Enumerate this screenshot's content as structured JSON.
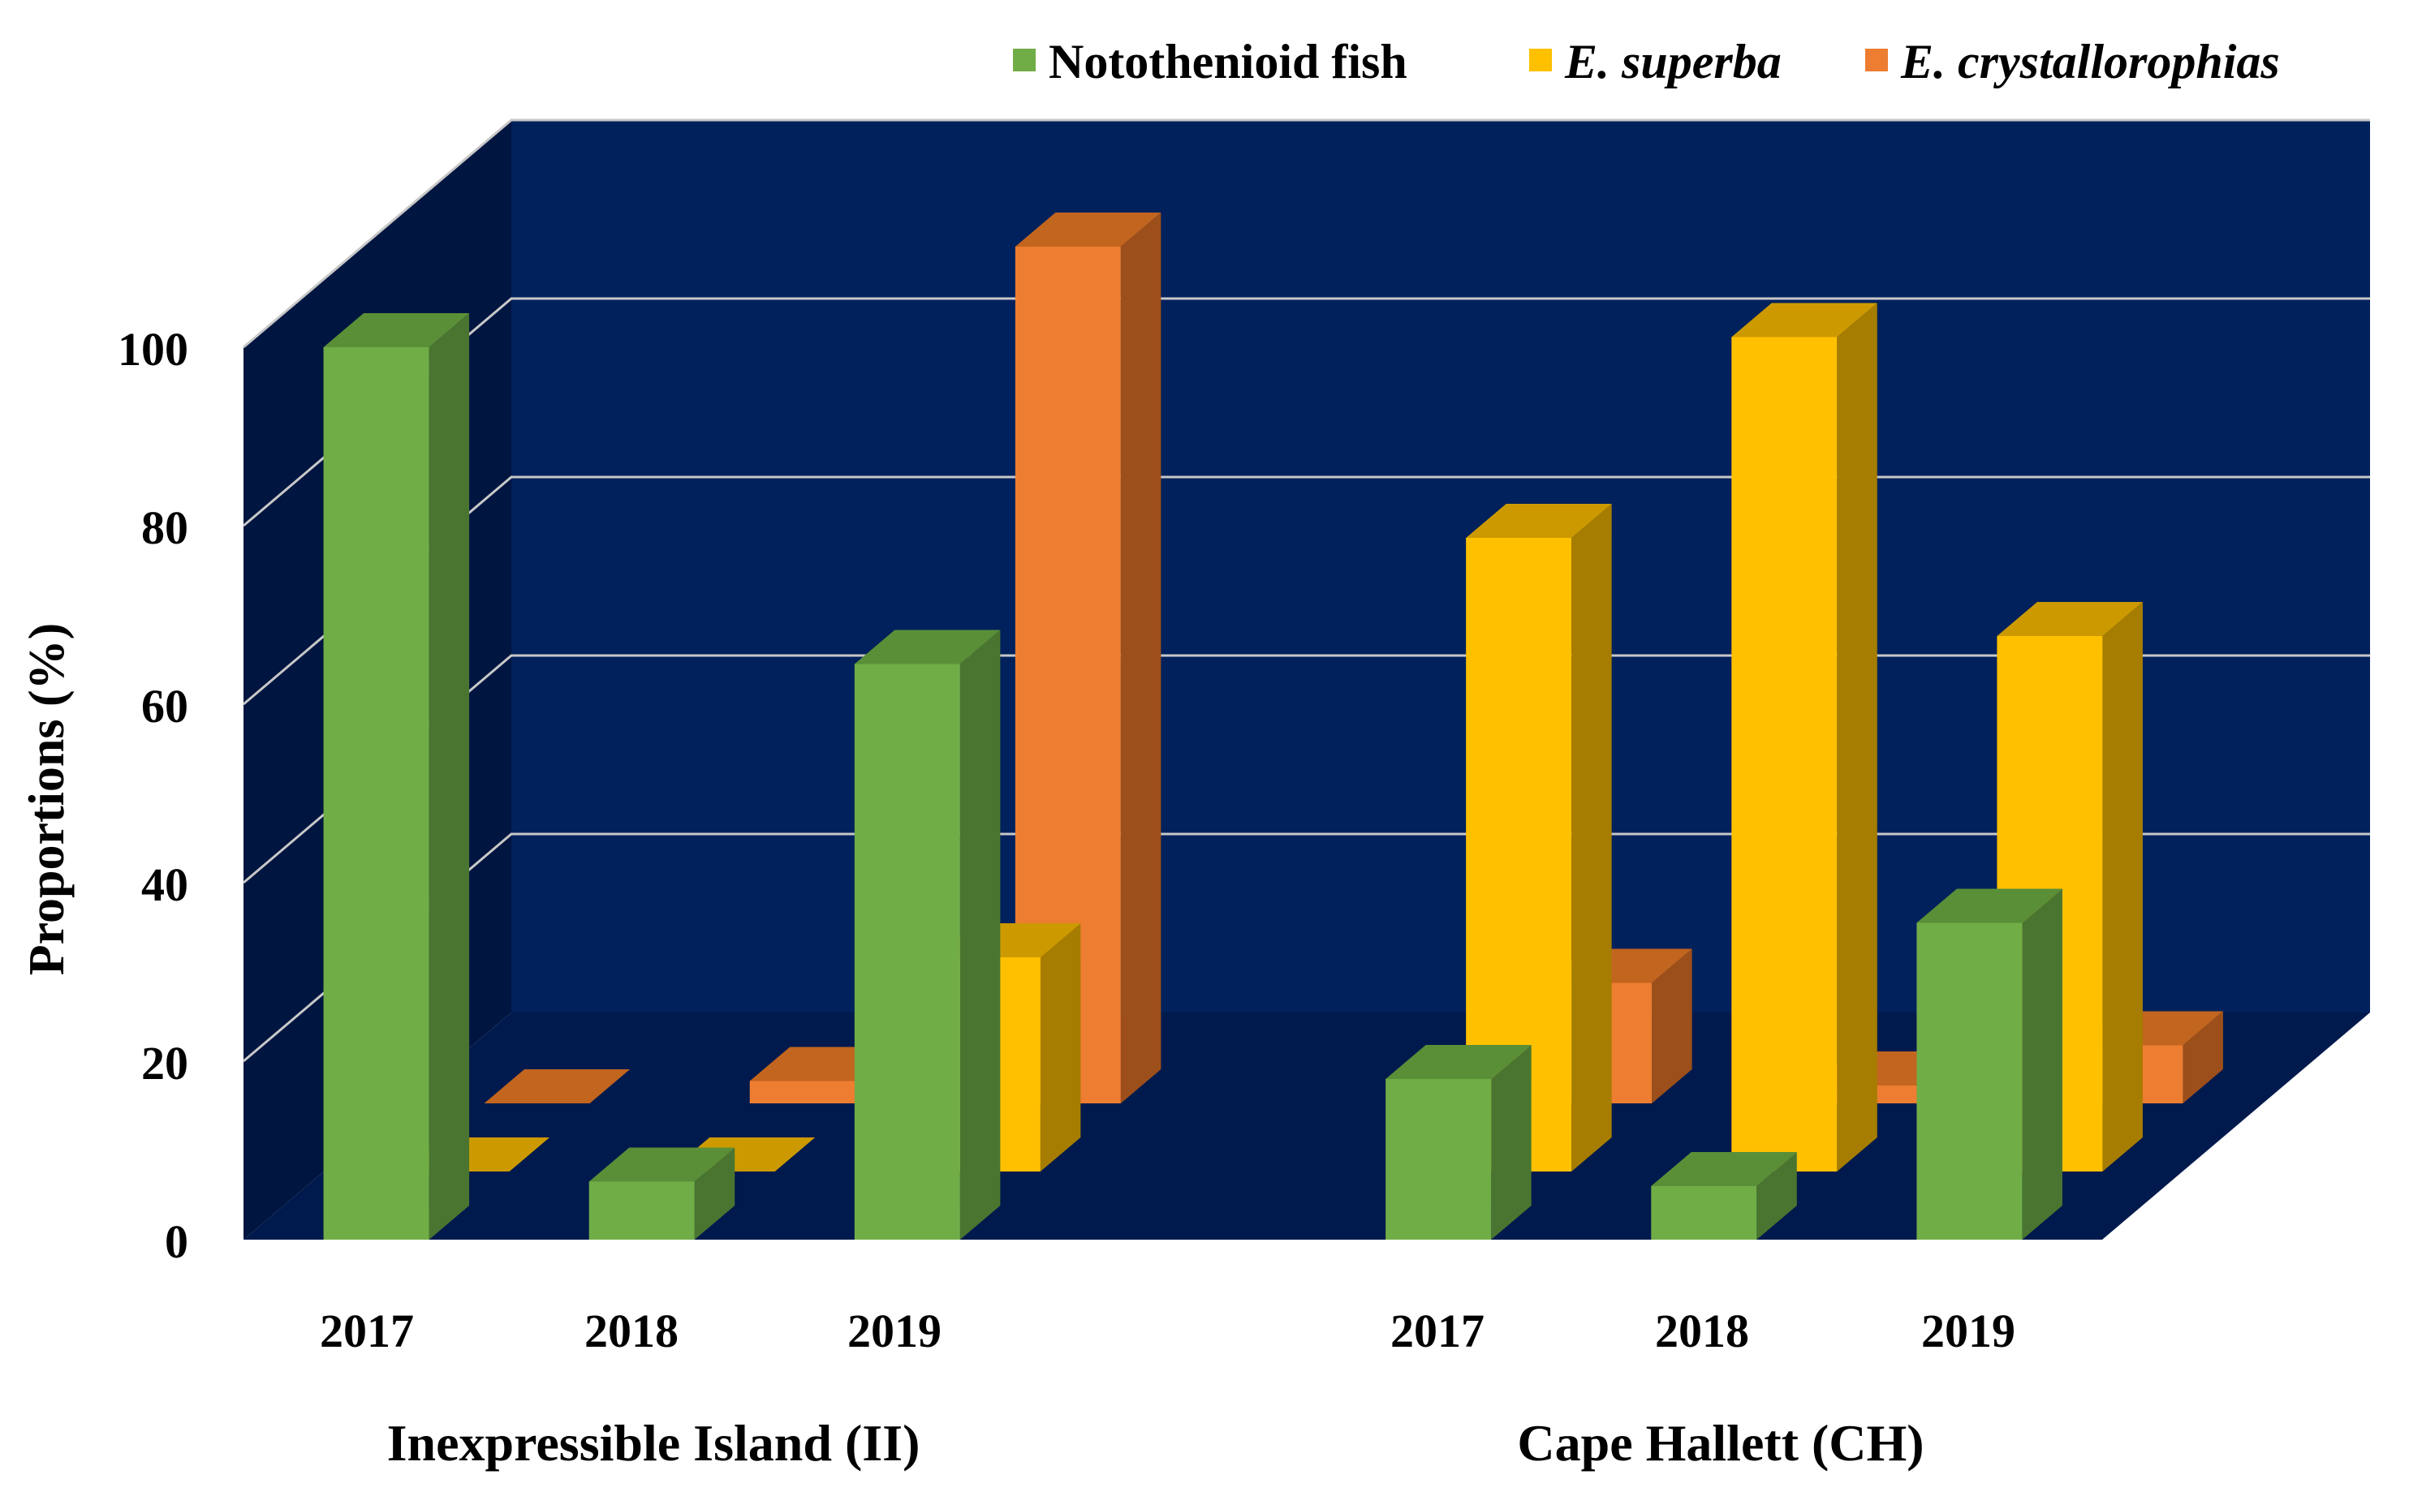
{
  "chart_data": {
    "type": "bar",
    "style": "3d-clustered",
    "title": "",
    "ylabel": "Proportions (%)",
    "xlabel": "",
    "ylim": [
      0,
      100
    ],
    "yticks": [
      "0",
      "20",
      "40",
      "60",
      "80",
      "100"
    ],
    "grid": true,
    "legend_position": "top-right",
    "groups": [
      "Inexpressible Island (II)",
      "Cape Hallett (CH)"
    ],
    "categories": [
      "2017",
      "2018",
      "2019",
      "2017",
      "2018",
      "2019"
    ],
    "series": [
      {
        "name": "Notothenioid fish",
        "italic": false,
        "values": [
          100,
          6.5,
          64.5,
          18,
          6,
          35.5
        ]
      },
      {
        "name": "E. superba",
        "italic": true,
        "values": [
          0,
          0,
          24,
          71,
          93.5,
          60
        ]
      },
      {
        "name": "E. crystallorophias",
        "italic": true,
        "values": [
          0,
          2.5,
          96,
          13.5,
          2,
          6.5
        ]
      }
    ],
    "colors": {
      "series_front": [
        "#70ad47",
        "#ffc000",
        "#ed7d31"
      ],
      "series_top": [
        "#5a8f38",
        "#cc9a00",
        "#c2651f"
      ],
      "series_side": [
        "#4a7530",
        "#a67d00",
        "#9c4f1a"
      ],
      "back_wall": "#00215c",
      "side_wall": "#001540",
      "floor": "#001a4d",
      "gridline": "#c8c8c8"
    }
  }
}
